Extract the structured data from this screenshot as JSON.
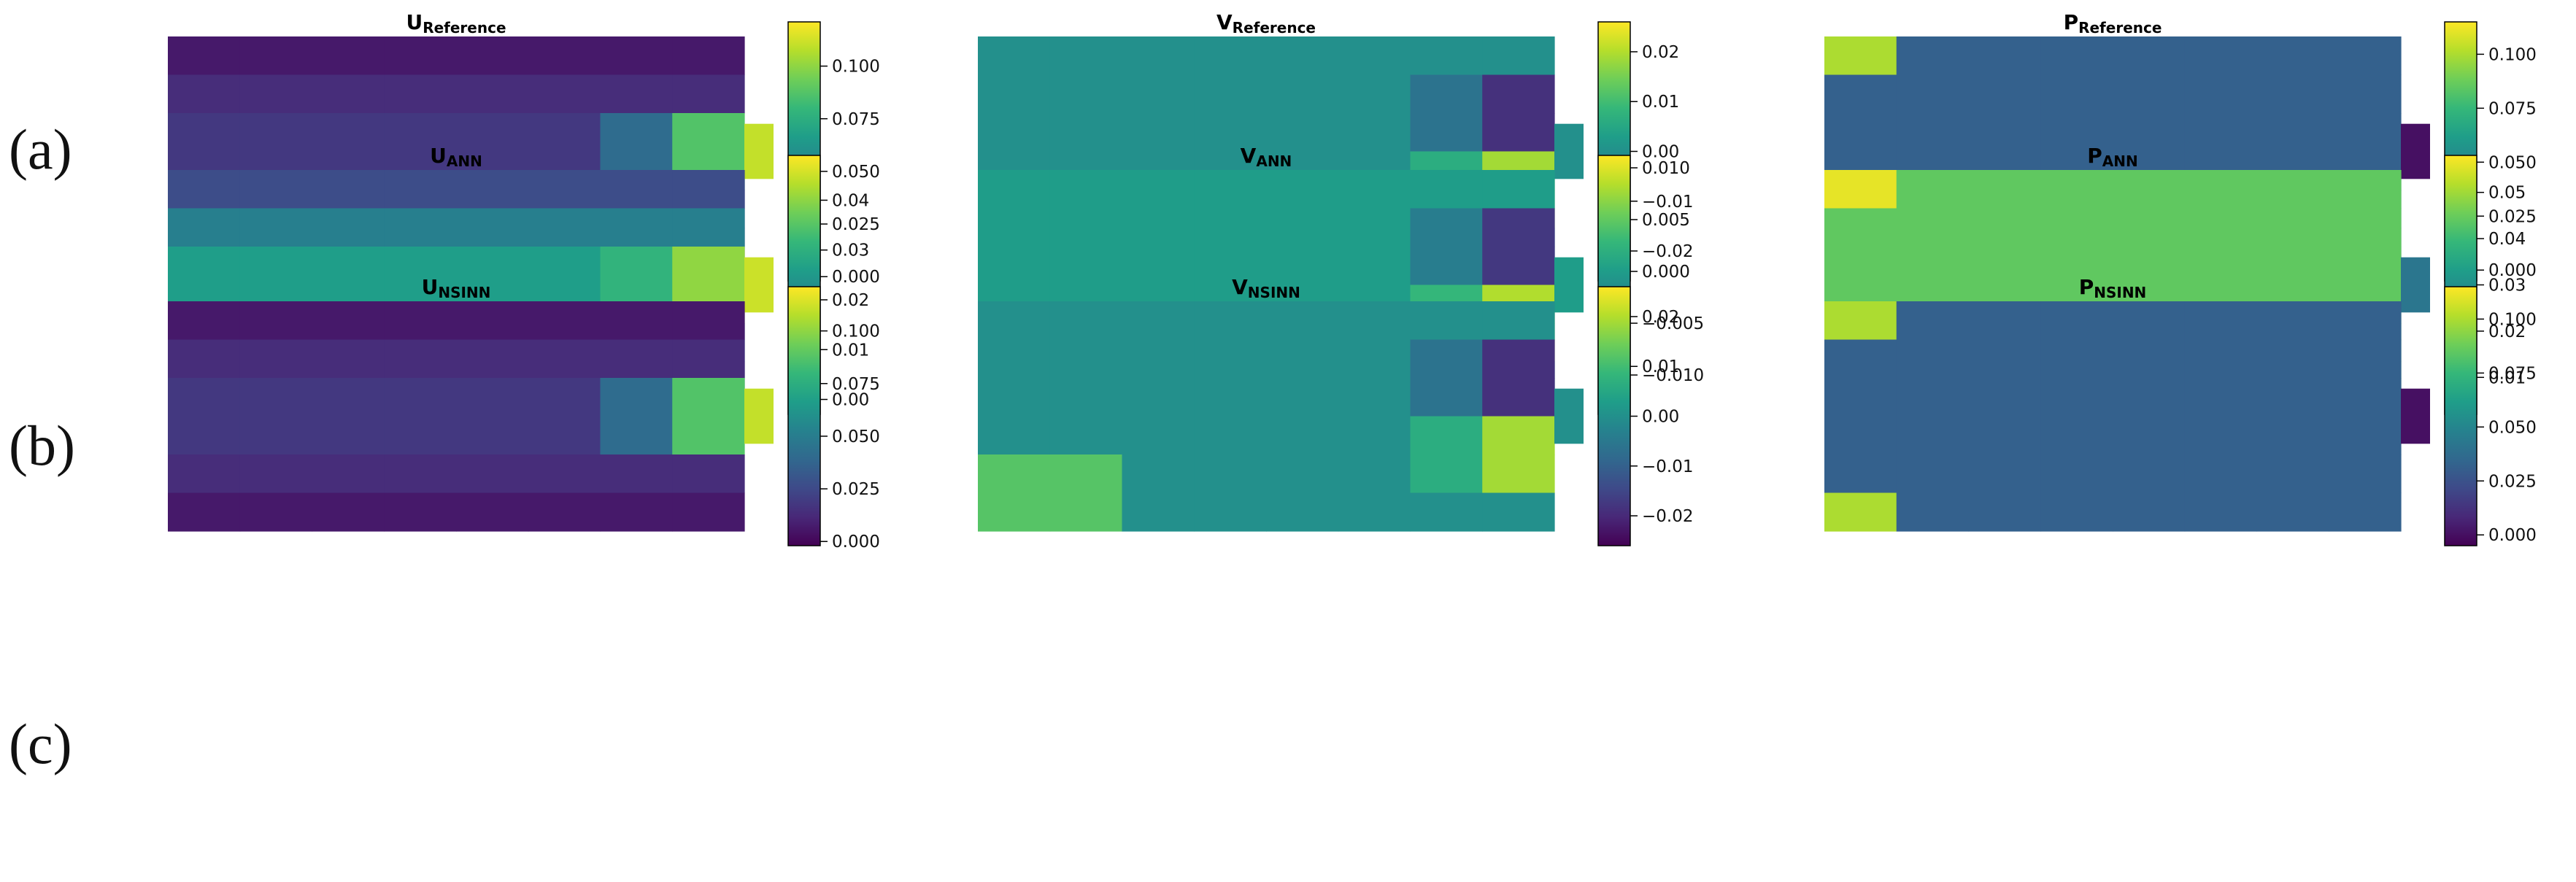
{
  "rows": [
    {
      "label": "(a)"
    },
    {
      "label": "(b)"
    },
    {
      "label": "(c)"
    }
  ],
  "colors": {
    "viridis": [
      "#440154",
      "#482878",
      "#3e4a89",
      "#31688e",
      "#26828e",
      "#1f9e89",
      "#35b779",
      "#6ece58",
      "#b5de2b",
      "#fde725"
    ]
  },
  "chart_data": [
    {
      "type": "heatmap",
      "field": "u-reference",
      "title_main": "U",
      "title_sub": "Reference",
      "colorbar_ticks": [
        "0.000",
        "0.025",
        "0.050",
        "0.075",
        "0.100"
      ],
      "colorbar_range": [
        -0.002,
        0.121
      ],
      "domain_value": 0.018,
      "wall_value": 0.0,
      "jet_value": 0.11
    },
    {
      "type": "heatmap",
      "field": "v-reference",
      "title_main": "V",
      "title_sub": "Reference",
      "colorbar_ticks": [
        "−0.02",
        "−0.01",
        "0.00",
        "0.01",
        "0.02"
      ],
      "colorbar_range": [
        -0.026,
        0.026
      ],
      "domain_value": 0.0,
      "corner_high": 0.012,
      "dipole_top": -0.025,
      "dipole_bottom": 0.025
    },
    {
      "type": "heatmap",
      "field": "p-reference",
      "title_main": "P",
      "title_sub": "Reference",
      "colorbar_ticks": [
        "0.000",
        "0.025",
        "0.050",
        "0.075",
        "0.100"
      ],
      "colorbar_range": [
        -0.005,
        0.115
      ],
      "domain_value": 0.032,
      "outlet_value": 0.0,
      "corner_value": 0.1
    },
    {
      "type": "heatmap",
      "field": "u-ann",
      "title_main": "U",
      "title_sub": "ANN",
      "colorbar_ticks": [
        "0.00",
        "0.01",
        "0.02",
        "0.03",
        "0.04"
      ],
      "colorbar_range": [
        -0.003,
        0.049
      ],
      "domain_value": 0.026,
      "wall_value": 0.0,
      "jet_value": 0.045
    },
    {
      "type": "heatmap",
      "field": "v-ann",
      "title_main": "V",
      "title_sub": "ANN",
      "colorbar_ticks": [
        "−0.010",
        "−0.005",
        "0.000",
        "0.005",
        "0.010"
      ],
      "colorbar_range": [
        -0.0138,
        0.0112
      ],
      "domain_value": 0.0,
      "corner_high": 0.006,
      "dipole_top": -0.013,
      "dipole_bottom": 0.011
    },
    {
      "type": "heatmap",
      "field": "p-ann",
      "title_main": "P",
      "title_sub": "ANN",
      "colorbar_ticks": [
        "0.01",
        "0.02",
        "0.03",
        "0.04",
        "0.05"
      ],
      "colorbar_range": [
        0.002,
        0.058
      ],
      "domain_value": 0.044,
      "outlet_value": 0.024,
      "corner_value": 0.056
    },
    {
      "type": "heatmap",
      "field": "u-nsinn",
      "title_main": "U",
      "title_sub": "NSINN",
      "colorbar_ticks": [
        "0.000",
        "0.025",
        "0.050",
        "0.075",
        "0.100"
      ],
      "colorbar_range": [
        -0.002,
        0.121
      ],
      "domain_value": 0.018,
      "wall_value": 0.0,
      "jet_value": 0.11
    },
    {
      "type": "heatmap",
      "field": "v-nsinn",
      "title_main": "V",
      "title_sub": "NSINN",
      "colorbar_ticks": [
        "−0.02",
        "−0.01",
        "0.00",
        "0.01",
        "0.02"
      ],
      "colorbar_range": [
        -0.026,
        0.026
      ],
      "domain_value": 0.0,
      "corner_high": 0.012,
      "dipole_top": -0.025,
      "dipole_bottom": 0.025
    },
    {
      "type": "heatmap",
      "field": "p-nsinn",
      "title_main": "P",
      "title_sub": "NSINN",
      "colorbar_ticks": [
        "0.000",
        "0.025",
        "0.050",
        "0.075",
        "0.100"
      ],
      "colorbar_range": [
        -0.005,
        0.115
      ],
      "domain_value": 0.032,
      "outlet_value": 0.0,
      "corner_value": 0.1
    }
  ]
}
